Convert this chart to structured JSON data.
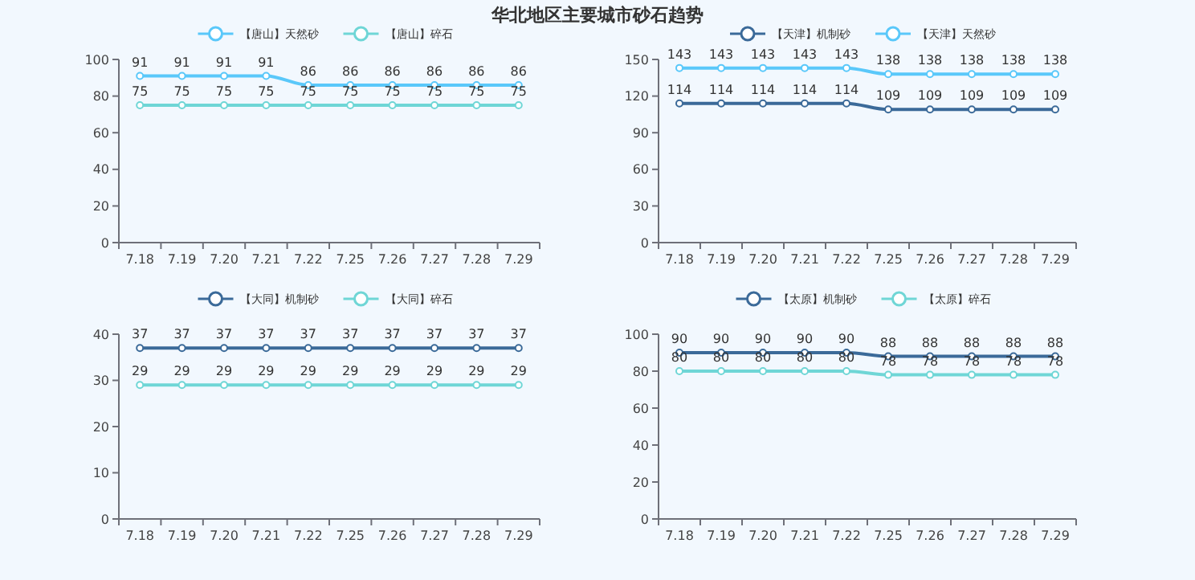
{
  "chart_data": [
    {
      "type": "line",
      "title": "华北地区主要城市砂石趋势",
      "categories": [
        "7.18",
        "7.19",
        "7.20",
        "7.21",
        "7.22",
        "7.25",
        "7.26",
        "7.27",
        "7.28",
        "7.29"
      ],
      "ylim": [
        0,
        100
      ],
      "yticks": [
        0,
        20,
        40,
        60,
        80,
        100
      ],
      "legend": "top",
      "marker": "circle",
      "data_labels": true,
      "grid": false,
      "series": [
        {
          "name": "【唐山】天然砂",
          "color": "#5ac8fa",
          "values": [
            91,
            91,
            91,
            91,
            86,
            86,
            86,
            86,
            86,
            86
          ]
        },
        {
          "name": "【唐山】碎石",
          "color": "#6fd6d6",
          "values": [
            75,
            75,
            75,
            75,
            75,
            75,
            75,
            75,
            75,
            75
          ]
        }
      ]
    },
    {
      "type": "line",
      "categories": [
        "7.18",
        "7.19",
        "7.20",
        "7.21",
        "7.22",
        "7.25",
        "7.26",
        "7.27",
        "7.28",
        "7.29"
      ],
      "ylim": [
        0,
        150
      ],
      "yticks": [
        0,
        30,
        60,
        90,
        120,
        150
      ],
      "legend": "top",
      "marker": "circle",
      "data_labels": true,
      "grid": false,
      "series": [
        {
          "name": "【天津】机制砂",
          "color": "#3b6a99",
          "values": [
            114,
            114,
            114,
            114,
            114,
            109,
            109,
            109,
            109,
            109
          ]
        },
        {
          "name": "【天津】天然砂",
          "color": "#5ac8fa",
          "values": [
            143,
            143,
            143,
            143,
            143,
            138,
            138,
            138,
            138,
            138
          ]
        }
      ]
    },
    {
      "type": "line",
      "categories": [
        "7.18",
        "7.19",
        "7.20",
        "7.21",
        "7.22",
        "7.25",
        "7.26",
        "7.27",
        "7.28",
        "7.29"
      ],
      "ylim": [
        0,
        40
      ],
      "yticks": [
        0,
        10,
        20,
        30,
        40
      ],
      "legend": "top",
      "marker": "circle",
      "data_labels": true,
      "grid": false,
      "series": [
        {
          "name": "【大同】机制砂",
          "color": "#3b6a99",
          "values": [
            37,
            37,
            37,
            37,
            37,
            37,
            37,
            37,
            37,
            37
          ]
        },
        {
          "name": "【大同】碎石",
          "color": "#6fd6d6",
          "values": [
            29,
            29,
            29,
            29,
            29,
            29,
            29,
            29,
            29,
            29
          ]
        }
      ]
    },
    {
      "type": "line",
      "categories": [
        "7.18",
        "7.19",
        "7.20",
        "7.21",
        "7.22",
        "7.25",
        "7.26",
        "7.27",
        "7.28",
        "7.29"
      ],
      "ylim": [
        0,
        100
      ],
      "yticks": [
        0,
        20,
        40,
        60,
        80,
        100
      ],
      "legend": "top",
      "marker": "circle",
      "data_labels": true,
      "grid": false,
      "series": [
        {
          "name": "【太原】机制砂",
          "color": "#3b6a99",
          "values": [
            90,
            90,
            90,
            90,
            90,
            88,
            88,
            88,
            88,
            88
          ]
        },
        {
          "name": "【太原】碎石",
          "color": "#6fd6d6",
          "values": [
            80,
            80,
            80,
            80,
            80,
            78,
            78,
            78,
            78,
            78
          ]
        }
      ]
    }
  ]
}
